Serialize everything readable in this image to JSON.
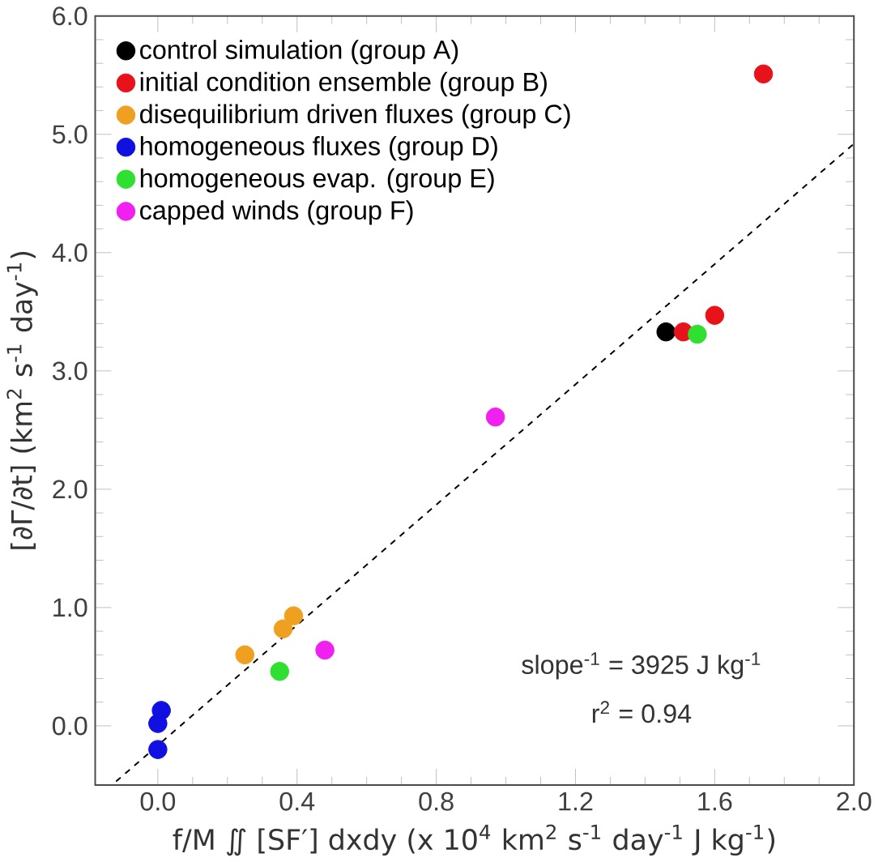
{
  "chart_data": {
    "type": "scatter",
    "xlabel": "f/M ∬ [SF′] dxdy (x 10$^{4}$ km$^{2}$ s$^{-1}$ day$^{-1}$ J kg$^{-1}$)",
    "ylabel": "[∂Γ/∂t]  (km$^{2}$ s$^{-1}$ day$^{-1}$)",
    "xlim": [
      -0.18,
      2.0
    ],
    "ylim": [
      -0.5,
      6.0
    ],
    "xticks": [
      {
        "value": 0,
        "label": "0.0"
      },
      {
        "value": 0.4,
        "label": "0.4"
      },
      {
        "value": 0.8,
        "label": "0.8"
      },
      {
        "value": 1.2,
        "label": "1.2"
      },
      {
        "value": 1.6,
        "label": "1.6"
      },
      {
        "value": 2.0,
        "label": "2.0"
      }
    ],
    "yticks": [
      {
        "value": 0,
        "label": "0.0"
      },
      {
        "value": 1,
        "label": "1.0"
      },
      {
        "value": 2,
        "label": "2.0"
      },
      {
        "value": 3,
        "label": "3.0"
      },
      {
        "value": 4,
        "label": "4.0"
      },
      {
        "value": 5,
        "label": "5.0"
      },
      {
        "value": 6,
        "label": "6.0"
      }
    ],
    "legend": "top left",
    "marker": "circle",
    "grid": false,
    "series": [
      {
        "name": "control simulation (group A)",
        "color": "#000000",
        "x": [
          1.46
        ],
        "values": [
          3.33
        ]
      },
      {
        "name": "initial condition ensemble (group B)",
        "color": "#e8121b",
        "x": [
          1.74,
          1.51,
          1.6
        ],
        "values": [
          5.51,
          3.33,
          3.47
        ]
      },
      {
        "name": "disequilibrium driven fluxes (group C)",
        "color": "#f0a020",
        "x": [
          0.25,
          0.36,
          0.39
        ],
        "values": [
          0.6,
          0.82,
          0.93
        ]
      },
      {
        "name": "homogeneous fluxes (group D)",
        "color": "#1010e0",
        "x": [
          0.01,
          0.0,
          0.0
        ],
        "values": [
          0.13,
          0.02,
          -0.2
        ]
      },
      {
        "name": "homogeneous evap. (group E)",
        "color": "#30e030",
        "x": [
          1.55,
          0.35
        ],
        "values": [
          3.31,
          0.46
        ]
      },
      {
        "name": "capped winds (group F)",
        "color": "#f020f0",
        "x": [
          0.97,
          0.48
        ],
        "values": [
          2.61,
          0.64
        ]
      },
      {
        "type": "line",
        "color": "#000000",
        "line_style": "dashed",
        "marker": "none",
        "x": [
          -0.12,
          2.0
        ],
        "values": [
          -0.47,
          4.92
        ]
      }
    ],
    "annotations": [
      "slope$^{-1}$ = 3925 J kg$^{-1}$",
      "r$^{2}$ =  0.94"
    ]
  }
}
